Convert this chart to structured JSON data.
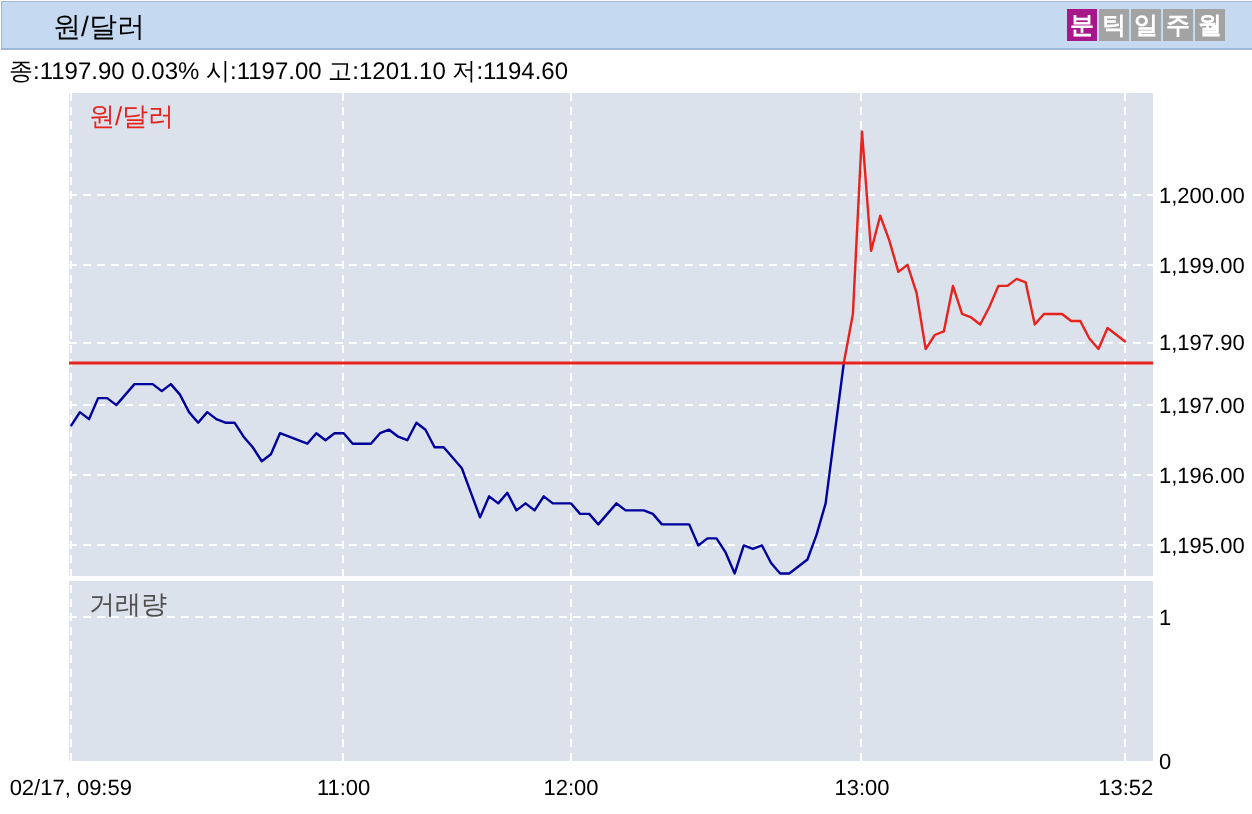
{
  "chart_data": [
    {
      "type": "line",
      "title": "원/달러",
      "subtitle": "종:1197.90 0.03% 시:1197.00 고:1201.10 저:1194.60",
      "annotations": [
        "분",
        "틱",
        "일",
        "주",
        "월"
      ],
      "categories": [
        null,
        null,
        null,
        null,
        null,
        null,
        null,
        null,
        null,
        null,
        null,
        null,
        null,
        null,
        null,
        null,
        null,
        null,
        null,
        null,
        null,
        null,
        null,
        null,
        null,
        null,
        null,
        null,
        null,
        null,
        null,
        null,
        null,
        null,
        null,
        null,
        null,
        null,
        null,
        null,
        null,
        null,
        null,
        null,
        null,
        null,
        null,
        null,
        null,
        null,
        null,
        null,
        null,
        null,
        null,
        null,
        null,
        null,
        null,
        null,
        null,
        null,
        null,
        null,
        null,
        null,
        null,
        null,
        null,
        null,
        null,
        null,
        null,
        null,
        null,
        null,
        null,
        null,
        null,
        null,
        null,
        null,
        null,
        null,
        null,
        null,
        null,
        null,
        null,
        null,
        null,
        null,
        null,
        null,
        null,
        null,
        null,
        null,
        null,
        null,
        null,
        null,
        null,
        null,
        null,
        null,
        null,
        null,
        null,
        null,
        null,
        null,
        null,
        null,
        null,
        null,
        null
      ],
      "ylim": [
        1194.55,
        1201.45
      ],
      "yticks": [
        {
          "value": 1195,
          "label": "1,195.00"
        },
        {
          "value": 1196,
          "label": "1,196.00"
        },
        {
          "value": 1197,
          "label": "1,197.00"
        },
        {
          "value": 1197.9,
          "label": "1,197.90"
        },
        {
          "value": 1199,
          "label": "1,199.00"
        },
        {
          "value": 1200,
          "label": "1,200.00"
        }
      ],
      "tick_labels": "y",
      "grid": true,
      "legend": "top left",
      "ref_lines": [
        {
          "axis": "y",
          "value": 1197.6,
          "color": "#e8221c"
        }
      ],
      "series": [
        {
          "color": "#00009c",
          "values": [
            1196.7,
            1196.9,
            1196.8,
            1197.1,
            1197.1,
            1197.0,
            1197.15,
            1197.3,
            1197.3,
            1197.3,
            1197.2,
            1197.3,
            1197.15,
            1196.9,
            1196.75,
            1196.9,
            1196.8,
            1196.75,
            1196.75,
            1196.55,
            1196.4,
            1196.2,
            1196.3,
            1196.6,
            1196.55,
            1196.5,
            1196.45,
            1196.6,
            1196.5,
            1196.6,
            1196.6,
            1196.45,
            1196.45,
            1196.45,
            1196.6,
            1196.65,
            1196.55,
            1196.5,
            1196.75,
            1196.65,
            1196.4,
            1196.4,
            1196.25,
            1196.1,
            1195.75,
            1195.4,
            1195.7,
            1195.6,
            1195.75,
            1195.5,
            1195.6,
            1195.5,
            1195.7,
            1195.6,
            1195.6,
            1195.6,
            1195.45,
            1195.45,
            1195.3,
            1195.45,
            1195.6,
            1195.5,
            1195.5,
            1195.5,
            1195.45,
            1195.3,
            1195.3,
            1195.3,
            1195.3,
            1195.0,
            1195.1,
            1195.1,
            1194.9,
            1194.6,
            1195.0,
            1194.95,
            1195.0,
            1194.75,
            1194.6,
            1194.6,
            1194.7,
            1194.8,
            1195.15,
            1195.6,
            1196.6,
            1197.6,
            null,
            null,
            null,
            null,
            null,
            null,
            null,
            null,
            null,
            null,
            null,
            null,
            null,
            null,
            null,
            null,
            null,
            null,
            null,
            null,
            null,
            null,
            null,
            null,
            null,
            null,
            null,
            null,
            null,
            null,
            null
          ]
        },
        {
          "name": "원/달러",
          "color": "#e8221c",
          "values": [
            null,
            null,
            null,
            null,
            null,
            null,
            null,
            null,
            null,
            null,
            null,
            null,
            null,
            null,
            null,
            null,
            null,
            null,
            null,
            null,
            null,
            null,
            null,
            null,
            null,
            null,
            null,
            null,
            null,
            null,
            null,
            null,
            null,
            null,
            null,
            null,
            null,
            null,
            null,
            null,
            null,
            null,
            null,
            null,
            null,
            null,
            null,
            null,
            null,
            null,
            null,
            null,
            null,
            null,
            null,
            null,
            null,
            null,
            null,
            null,
            null,
            null,
            null,
            null,
            null,
            null,
            null,
            null,
            null,
            null,
            null,
            null,
            null,
            null,
            null,
            null,
            null,
            null,
            null,
            null,
            null,
            null,
            null,
            null,
            null,
            1197.6,
            1198.3,
            1200.9,
            1199.2,
            1199.7,
            1199.35,
            1198.9,
            1199.0,
            1198.6,
            1197.8,
            1198.0,
            1198.05,
            1198.7,
            1198.3,
            1198.25,
            1198.15,
            1198.4,
            1198.7,
            1198.7,
            1198.8,
            1198.75,
            1198.15,
            1198.3,
            1198.3,
            1198.3,
            1198.2,
            1198.2,
            1197.95,
            1197.8,
            1198.1,
            1198.0,
            1197.9
          ]
        }
      ]
    },
    {
      "type": "bar",
      "title": "거래량",
      "categories": [
        "02/17, 09:59",
        null,
        null,
        null,
        null,
        null,
        null,
        null,
        null,
        null,
        null,
        null,
        null,
        null,
        null,
        null,
        null,
        null,
        null,
        null,
        null,
        null,
        null,
        null,
        null,
        null,
        null,
        null,
        null,
        null,
        "11:00",
        null,
        null,
        null,
        null,
        null,
        null,
        null,
        null,
        null,
        null,
        null,
        null,
        null,
        null,
        null,
        null,
        null,
        null,
        null,
        null,
        null,
        null,
        null,
        null,
        "12:00",
        null,
        null,
        null,
        null,
        null,
        null,
        null,
        null,
        null,
        null,
        null,
        null,
        null,
        null,
        null,
        null,
        null,
        null,
        null,
        null,
        null,
        null,
        null,
        null,
        null,
        null,
        null,
        null,
        null,
        null,
        null,
        "13:00",
        null,
        null,
        null,
        null,
        null,
        null,
        null,
        null,
        null,
        null,
        null,
        null,
        null,
        null,
        null,
        null,
        null,
        null,
        null,
        null,
        null,
        null,
        null,
        null,
        null,
        null,
        null,
        null,
        "13:52"
      ],
      "ylim": [
        0,
        1.25
      ],
      "yticks": [
        0,
        1
      ],
      "grid": true
    }
  ]
}
